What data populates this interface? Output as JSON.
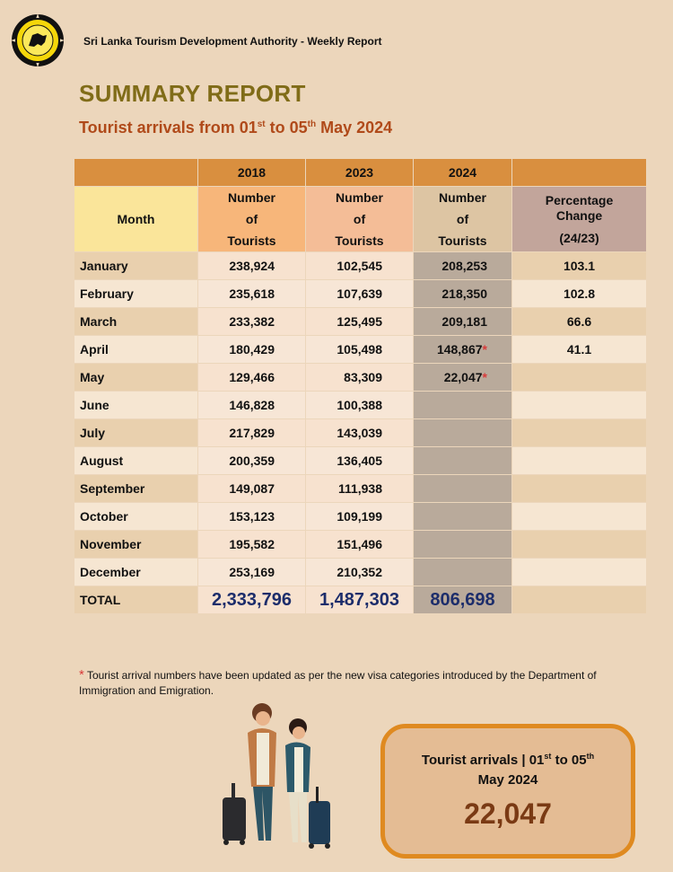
{
  "header": {
    "org": "Sri Lanka Tourism Development Authority - Weekly Report",
    "title": "SUMMARY REPORT",
    "subtitle_pre": "Tourist arrivals from 01",
    "subtitle_sup1": "st",
    "subtitle_mid": " to 05",
    "subtitle_sup2": "th",
    "subtitle_post": " May 2024"
  },
  "table": {
    "years": [
      "2018",
      "2023",
      "2024"
    ],
    "month_header": "Month",
    "col_header_lines": [
      "Number",
      "of",
      "Tourists"
    ],
    "pct_header_lines": [
      "Percentage",
      "Change",
      "(24/23)"
    ],
    "rows": [
      {
        "month": "January",
        "y2018": "238,924",
        "y2023": "102,545",
        "y2024": "208,253",
        "star": "",
        "pct": "103.1"
      },
      {
        "month": "February",
        "y2018": "235,618",
        "y2023": "107,639",
        "y2024": "218,350",
        "star": "",
        "pct": "102.8"
      },
      {
        "month": "March",
        "y2018": "233,382",
        "y2023": "125,495",
        "y2024": "209,181",
        "star": "",
        "pct": "66.6"
      },
      {
        "month": "April",
        "y2018": "180,429",
        "y2023": "105,498",
        "y2024": "148,867",
        "star": "*",
        "pct": "41.1"
      },
      {
        "month": "May",
        "y2018": "129,466",
        "y2023": "83,309",
        "y2024": "22,047",
        "star": "*",
        "pct": ""
      },
      {
        "month": "June",
        "y2018": "146,828",
        "y2023": "100,388",
        "y2024": "",
        "star": "",
        "pct": ""
      },
      {
        "month": "July",
        "y2018": "217,829",
        "y2023": "143,039",
        "y2024": "",
        "star": "",
        "pct": ""
      },
      {
        "month": "August",
        "y2018": "200,359",
        "y2023": "136,405",
        "y2024": "",
        "star": "",
        "pct": ""
      },
      {
        "month": "September",
        "y2018": "149,087",
        "y2023": "111,938",
        "y2024": "",
        "star": "",
        "pct": ""
      },
      {
        "month": "October",
        "y2018": "153,123",
        "y2023": "109,199",
        "y2024": "",
        "star": "",
        "pct": ""
      },
      {
        "month": "November",
        "y2018": "195,582",
        "y2023": "151,496",
        "y2024": "",
        "star": "",
        "pct": ""
      },
      {
        "month": "December",
        "y2018": "253,169",
        "y2023": "210,352",
        "y2024": "",
        "star": "",
        "pct": ""
      }
    ],
    "total": {
      "label": "TOTAL",
      "y2018": "2,333,796",
      "y2023": "1,487,303",
      "y2024": "806,698"
    }
  },
  "note": {
    "star": "*",
    "text": " Tourist arrival numbers have been updated as per the new visa categories introduced by the Department of Immigration and Emigration."
  },
  "highlight": {
    "line1_pre": "Tourist arrivals | 01",
    "sup1": "st",
    "line1_mid": " to 05",
    "sup2": "th",
    "line2": "May 2024",
    "value": "22,047"
  },
  "colors": {
    "background": "#ecd6bb",
    "title": "#806c18",
    "subtitle": "#b04a1a",
    "totals": "#1c2d6b",
    "highlight_border": "#df8a20",
    "highlight_value": "#7a3a14"
  }
}
